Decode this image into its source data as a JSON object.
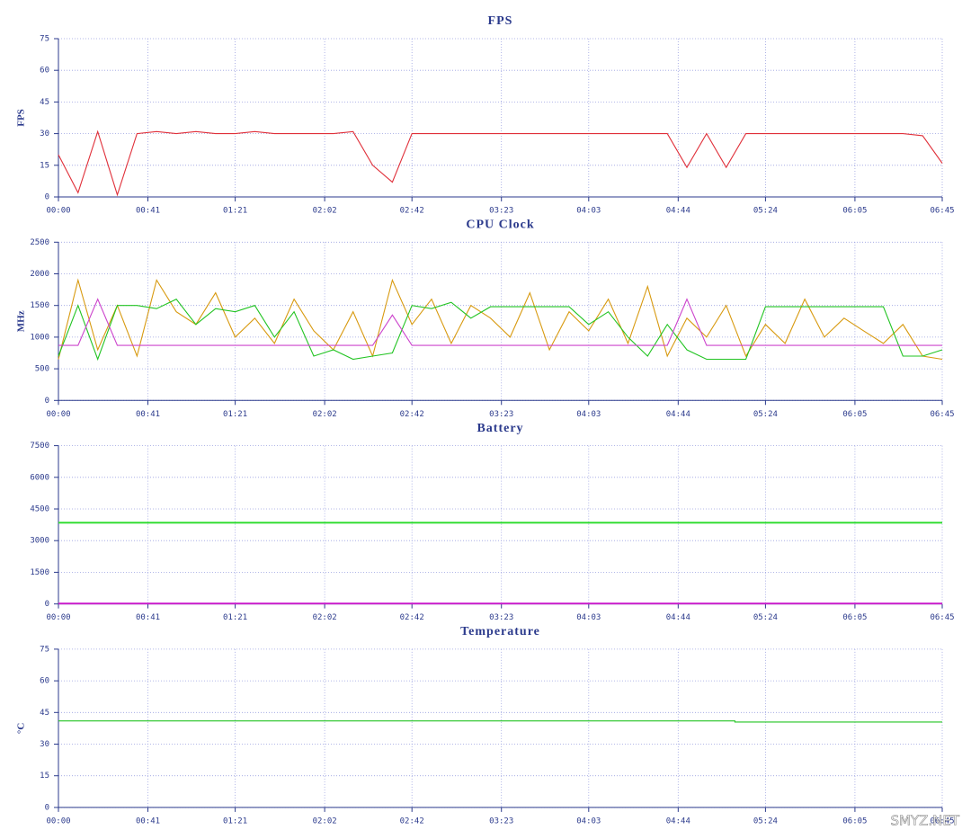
{
  "chart_data": [
    {
      "type": "line",
      "title": "FPS",
      "y_label": "FPS",
      "x": [
        0,
        9,
        18,
        27,
        36,
        45,
        54,
        63,
        72,
        81,
        90,
        99,
        108,
        117,
        126,
        135,
        144,
        153,
        162,
        171,
        180,
        189,
        198,
        207,
        216,
        225,
        234,
        243,
        252,
        261,
        270,
        279,
        288,
        297,
        306,
        315,
        324,
        333,
        342,
        351,
        360,
        369,
        378,
        387,
        396,
        405
      ],
      "series": [
        {
          "color": "#e0303a",
          "values": [
            20,
            2,
            31,
            1,
            30,
            31,
            30,
            31,
            30,
            30,
            31,
            30,
            30,
            30,
            30,
            31,
            15,
            7,
            30,
            30,
            30,
            30,
            30,
            30,
            30,
            30,
            30,
            30,
            30,
            30,
            30,
            30,
            14,
            30,
            14,
            30,
            30,
            30,
            30,
            30,
            30,
            30,
            30,
            30,
            29,
            16
          ]
        }
      ],
      "xlim": [
        0,
        405
      ],
      "ylim": [
        0,
        75
      ],
      "yticks": [
        0,
        15,
        30,
        45,
        60,
        75
      ],
      "xticks": [
        {
          "value": 0,
          "label": "00:00"
        },
        {
          "value": 41,
          "label": "00:41"
        },
        {
          "value": 81,
          "label": "01:21"
        },
        {
          "value": 122,
          "label": "02:02"
        },
        {
          "value": 162,
          "label": "02:42"
        },
        {
          "value": 203,
          "label": "03:23"
        },
        {
          "value": 243,
          "label": "04:03"
        },
        {
          "value": 284,
          "label": "04:44"
        },
        {
          "value": 324,
          "label": "05:24"
        },
        {
          "value": 365,
          "label": "06:05"
        },
        {
          "value": 405,
          "label": "06:45"
        }
      ],
      "grid": true
    },
    {
      "type": "line",
      "title": "CPU Clock",
      "y_label": "MHz",
      "x": [
        0,
        9,
        18,
        27,
        36,
        45,
        54,
        63,
        72,
        81,
        90,
        99,
        108,
        117,
        126,
        135,
        144,
        153,
        162,
        171,
        180,
        189,
        198,
        207,
        216,
        225,
        234,
        243,
        252,
        261,
        270,
        279,
        288,
        297,
        306,
        315,
        324,
        333,
        342,
        351,
        360,
        369,
        378,
        387,
        396,
        405
      ],
      "series": [
        {
          "color": "#d89a10",
          "values": [
            650,
            1900,
            800,
            1500,
            700,
            1900,
            1400,
            1200,
            1700,
            1000,
            1300,
            900,
            1600,
            1100,
            800,
            1400,
            700,
            1900,
            1200,
            1600,
            900,
            1500,
            1300,
            1000,
            1700,
            800,
            1400,
            1100,
            1600,
            900,
            1800,
            700,
            1300,
            1000,
            1500,
            700,
            1200,
            900,
            1600,
            1000,
            1300,
            1100,
            900,
            1200,
            700,
            650
          ]
        },
        {
          "color": "#22c422",
          "values": [
            700,
            1500,
            650,
            1500,
            1500,
            1450,
            1600,
            1200,
            1450,
            1400,
            1500,
            1000,
            1400,
            700,
            800,
            650,
            700,
            750,
            1500,
            1450,
            1550,
            1300,
            1480,
            1480,
            1480,
            1480,
            1480,
            1200,
            1400,
            1000,
            700,
            1200,
            800,
            650,
            650,
            650,
            1480,
            1480,
            1480,
            1480,
            1480,
            1480,
            1480,
            700,
            700,
            800
          ]
        },
        {
          "color": "#cc44cc",
          "values": [
            870,
            870,
            1600,
            870,
            870,
            870,
            870,
            870,
            870,
            870,
            870,
            870,
            870,
            870,
            870,
            870,
            870,
            1350,
            870,
            870,
            870,
            870,
            870,
            870,
            870,
            870,
            870,
            870,
            870,
            870,
            870,
            870,
            1600,
            870,
            870,
            870,
            870,
            870,
            870,
            870,
            870,
            870,
            870,
            870,
            870,
            870
          ]
        }
      ],
      "xlim": [
        0,
        405
      ],
      "ylim": [
        0,
        2500
      ],
      "yticks": [
        0,
        500,
        1000,
        1500,
        2000,
        2500
      ],
      "xticks": [
        {
          "value": 0,
          "label": "00:00"
        },
        {
          "value": 41,
          "label": "00:41"
        },
        {
          "value": 81,
          "label": "01:21"
        },
        {
          "value": 122,
          "label": "02:02"
        },
        {
          "value": 162,
          "label": "02:42"
        },
        {
          "value": 203,
          "label": "03:23"
        },
        {
          "value": 243,
          "label": "04:03"
        },
        {
          "value": 284,
          "label": "04:44"
        },
        {
          "value": 324,
          "label": "05:24"
        },
        {
          "value": 365,
          "label": "06:05"
        },
        {
          "value": 405,
          "label": "06:45"
        }
      ],
      "grid": true
    },
    {
      "type": "line",
      "title": "Battery",
      "x": [
        0,
        405
      ],
      "series": [
        {
          "color": "#33dd33",
          "values": [
            3850,
            3850
          ]
        },
        {
          "color": "#cc22cc",
          "values": [
            20,
            20
          ]
        }
      ],
      "xlim": [
        0,
        405
      ],
      "ylim": [
        0,
        7500
      ],
      "yticks": [
        0,
        1500,
        3000,
        4500,
        6000,
        7500
      ],
      "xticks": [
        {
          "value": 0,
          "label": "00:00"
        },
        {
          "value": 41,
          "label": "00:41"
        },
        {
          "value": 81,
          "label": "01:21"
        },
        {
          "value": 122,
          "label": "02:02"
        },
        {
          "value": 162,
          "label": "02:42"
        },
        {
          "value": 203,
          "label": "03:23"
        },
        {
          "value": 243,
          "label": "04:03"
        },
        {
          "value": 284,
          "label": "04:44"
        },
        {
          "value": 324,
          "label": "05:24"
        },
        {
          "value": 365,
          "label": "06:05"
        },
        {
          "value": 405,
          "label": "06:45"
        }
      ],
      "grid": true
    },
    {
      "type": "line",
      "title": "Temperature",
      "y_label": "°C",
      "x": [
        0,
        310,
        310,
        405
      ],
      "series": [
        {
          "color": "#22c422",
          "values": [
            41,
            41,
            40.5,
            40.5
          ]
        }
      ],
      "xlim": [
        0,
        405
      ],
      "ylim": [
        0,
        75
      ],
      "yticks": [
        0,
        15,
        30,
        45,
        60,
        75
      ],
      "xticks": [
        {
          "value": 0,
          "label": "00:00"
        },
        {
          "value": 41,
          "label": "00:41"
        },
        {
          "value": 81,
          "label": "01:21"
        },
        {
          "value": 122,
          "label": "02:02"
        },
        {
          "value": 162,
          "label": "02:42"
        },
        {
          "value": 203,
          "label": "03:23"
        },
        {
          "value": 243,
          "label": "04:03"
        },
        {
          "value": 284,
          "label": "04:44"
        },
        {
          "value": 324,
          "label": "05:24"
        },
        {
          "value": 365,
          "label": "06:05"
        },
        {
          "value": 405,
          "label": "06:45"
        }
      ],
      "grid": true
    }
  ],
  "watermark": "SMYZ.NET"
}
